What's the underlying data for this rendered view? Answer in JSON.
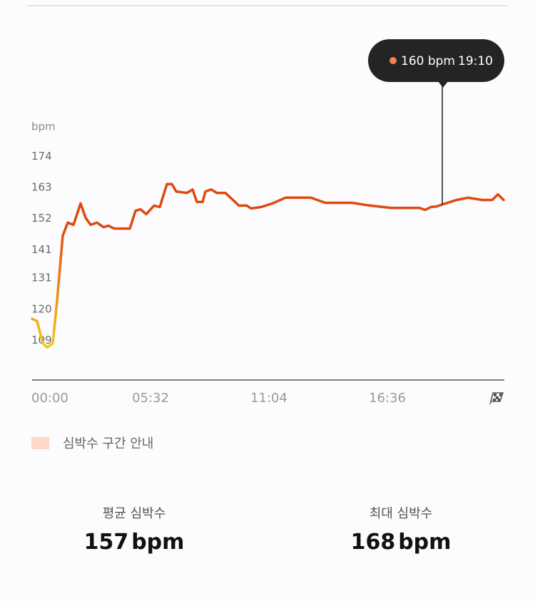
{
  "chart_data": {
    "type": "line",
    "y_label": "bpm",
    "x": [
      0,
      14,
      30,
      42,
      58,
      70,
      86,
      100,
      116,
      136,
      150,
      164,
      182,
      200,
      214,
      230,
      274,
      290,
      304,
      320,
      342,
      358,
      378,
      392,
      404,
      434,
      450,
      462,
      478,
      486,
      502,
      518,
      542,
      580,
      602,
      614,
      642,
      674,
      710,
      782,
      822,
      898,
      938,
      1006,
      1086,
      1102,
      1118,
      1134,
      1152,
      1190,
      1222,
      1262,
      1290,
      1306,
      1322
    ],
    "values": [
      116.6,
      115.8,
      108,
      106.5,
      108,
      123,
      146,
      150.6,
      149.8,
      157.4,
      152.3,
      149.8,
      150.6,
      149,
      149.5,
      148.5,
      148.5,
      154.8,
      155.3,
      153.6,
      156.6,
      156.1,
      164.2,
      164.2,
      161.6,
      161.1,
      162.3,
      157.9,
      157.9,
      161.6,
      162.3,
      161.1,
      161.1,
      156.6,
      156.6,
      155.6,
      156.1,
      157.4,
      159.4,
      159.4,
      157.6,
      157.6,
      156.8,
      155.8,
      155.8,
      155.1,
      156.1,
      156.3,
      157.1,
      158.6,
      159.4,
      158.6,
      158.6,
      160.6,
      158.6
    ],
    "colors": [
      "#f2cc1a",
      "#ec8a18",
      "#de4a10"
    ],
    "xlim": [
      0,
      1322
    ],
    "xticks": [
      {
        "value": 0,
        "label": "00:00"
      },
      {
        "value": 332,
        "label": "05:32"
      },
      {
        "value": 664,
        "label": "11:04"
      },
      {
        "value": 996,
        "label": "16:36"
      }
    ],
    "ylim": [
      95,
      185
    ],
    "yticks": [
      109,
      120,
      131,
      141,
      152,
      163,
      174
    ],
    "tooltip": {
      "text": "160 bpm",
      "time": {
        "value": 1150,
        "label": "19:10"
      },
      "dot_color": "#f4804a"
    },
    "legend": {
      "label": "심박수 구간 안내",
      "color": "#fdd7c8"
    }
  },
  "summary": [
    {
      "label": "평균 심박수",
      "value": 157,
      "unit": "bpm"
    },
    {
      "label": "최대 심박수",
      "value": 168,
      "unit": "bpm"
    }
  ]
}
